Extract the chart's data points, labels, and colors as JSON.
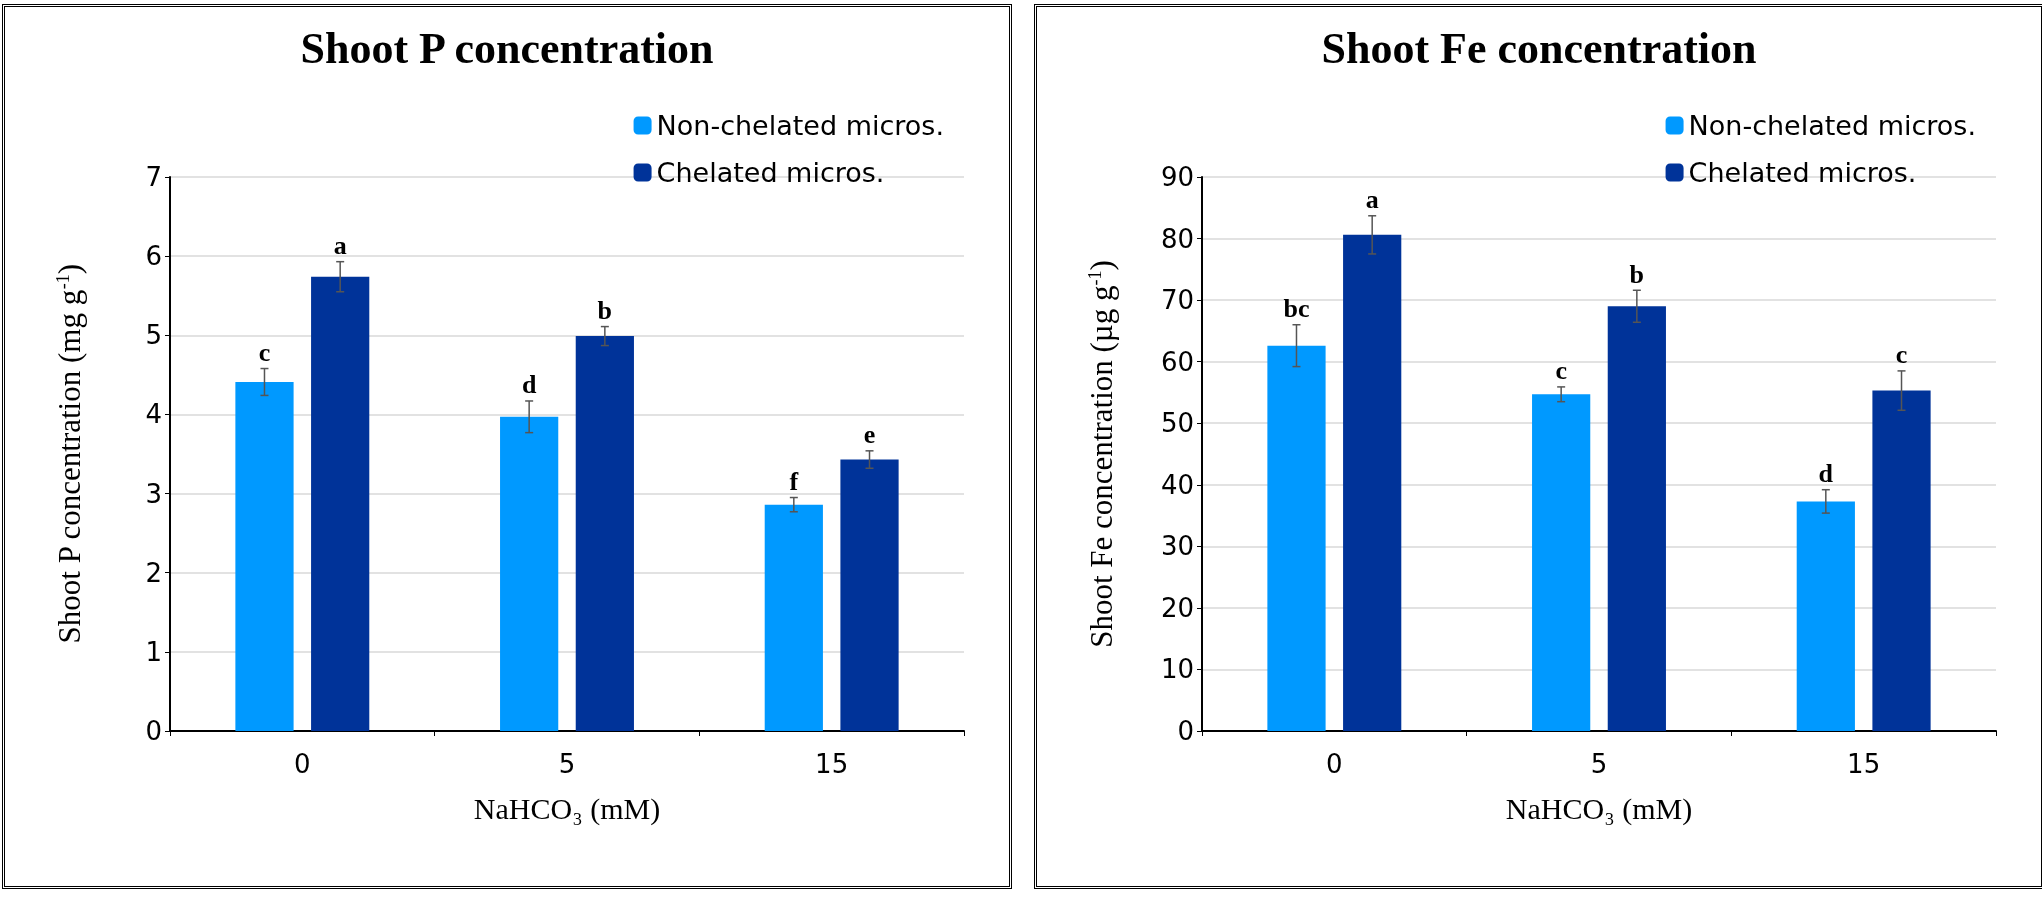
{
  "chart_data": [
    {
      "type": "bar",
      "title": "Shoot P concentration",
      "xlabel": "NaHCO₃ (mM)",
      "ylabel": "Shoot P concentration (mg g$^{-1}$)",
      "categories": [
        "0",
        "5",
        "15"
      ],
      "series": [
        {
          "name": "Non-chelated micros.",
          "color": "#0099ff",
          "values": [
            4.41,
            3.97,
            2.86
          ],
          "errors": [
            0.17,
            0.2,
            0.09
          ],
          "value_labels": [
            "c",
            "d",
            "f"
          ]
        },
        {
          "name": "Chelated micros.",
          "color": "#003399",
          "values": [
            5.74,
            4.99,
            3.43
          ],
          "errors": [
            0.19,
            0.12,
            0.11
          ],
          "value_labels": [
            "a",
            "b",
            "e"
          ]
        }
      ],
      "ylim": [
        0,
        7
      ],
      "yticks": [
        0,
        1,
        2,
        3,
        4,
        5,
        6,
        7
      ],
      "grid": "y",
      "legend": "top right"
    },
    {
      "type": "bar",
      "title": "Shoot Fe concentration",
      "xlabel": "NaHCO₃ (mM)",
      "ylabel": "Shoot Fe concentration (µg g$^{-1}$)",
      "categories": [
        "0",
        "5",
        "15"
      ],
      "series": [
        {
          "name": "Non-chelated micros.",
          "color": "#0099ff",
          "values": [
            62.6,
            54.7,
            37.3
          ],
          "errors": [
            3.4,
            1.2,
            1.9
          ],
          "value_labels": [
            "bc",
            "c",
            "d"
          ]
        },
        {
          "name": "Chelated micros.",
          "color": "#003399",
          "values": [
            80.6,
            69.0,
            55.3
          ],
          "errors": [
            3.1,
            2.6,
            3.2
          ],
          "value_labels": [
            "a",
            "b",
            "c"
          ]
        }
      ],
      "ylim": [
        0,
        90
      ],
      "yticks": [
        0,
        10,
        20,
        30,
        40,
        50,
        60,
        70,
        80,
        90
      ],
      "grid": "y",
      "legend": "top right"
    }
  ]
}
